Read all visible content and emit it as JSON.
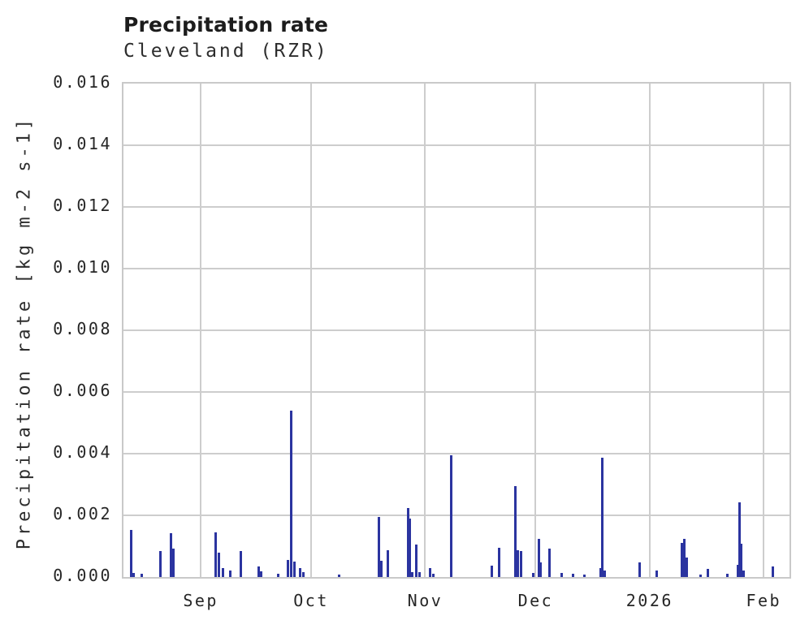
{
  "header": {
    "title": "Precipitation rate",
    "subtitle": "Cleveland (RZR)"
  },
  "chart_data": {
    "type": "bar",
    "title": "Precipitation rate",
    "subtitle": "Cleveland (RZR)",
    "xlabel": "",
    "ylabel": "Precipitation rate [kg m-2 s-1]",
    "ylim": [
      0,
      0.016
    ],
    "yticks": [
      "0.000",
      "0.002",
      "0.004",
      "0.006",
      "0.008",
      "0.010",
      "0.012",
      "0.014",
      "0.016"
    ],
    "grid": true,
    "legend": "none",
    "x_domain": [
      "2025-08-11",
      "2026-02-08"
    ],
    "x_ticks": [
      {
        "date": "2025-09-01",
        "label": "Sep"
      },
      {
        "date": "2025-10-01",
        "label": "Oct"
      },
      {
        "date": "2025-11-01",
        "label": "Nov"
      },
      {
        "date": "2025-12-01",
        "label": "Dec"
      },
      {
        "date": "2026-01-01",
        "label": "2026"
      },
      {
        "date": "2026-02-01",
        "label": "Feb"
      }
    ],
    "colors": {
      "bar": "#2b34a0",
      "grid": "#cdcdcd",
      "border": "#c9c9c9",
      "title_text": "#1c1c1c",
      "tick_text": "#262626",
      "background": "#ffffff"
    },
    "points": [
      {
        "date": "2025-08-13",
        "value": 0.00152
      },
      {
        "date": "2025-08-13T18:00",
        "value": 0.00013
      },
      {
        "date": "2025-08-16",
        "value": 0.0001
      },
      {
        "date": "2025-08-21",
        "value": 0.00084
      },
      {
        "date": "2025-08-24",
        "value": 0.00143
      },
      {
        "date": "2025-08-24T15:00",
        "value": 0.00091
      },
      {
        "date": "2025-09-05",
        "value": 0.00145
      },
      {
        "date": "2025-09-06",
        "value": 0.00078
      },
      {
        "date": "2025-09-07",
        "value": 0.0003
      },
      {
        "date": "2025-09-09",
        "value": 0.0002
      },
      {
        "date": "2025-09-12",
        "value": 0.00085
      },
      {
        "date": "2025-09-16T18:00",
        "value": 0.00035
      },
      {
        "date": "2025-09-17T12:00",
        "value": 0.00018
      },
      {
        "date": "2025-09-22",
        "value": 0.0001
      },
      {
        "date": "2025-09-24T16:00",
        "value": 0.00055
      },
      {
        "date": "2025-09-25T12:00",
        "value": 0.0054
      },
      {
        "date": "2025-09-26T12:00",
        "value": 0.0005
      },
      {
        "date": "2025-09-28",
        "value": 0.00028
      },
      {
        "date": "2025-09-29",
        "value": 0.00015
      },
      {
        "date": "2025-10-08T17:00",
        "value": 8e-05
      },
      {
        "date": "2025-10-19T12:00",
        "value": 0.00196
      },
      {
        "date": "2025-10-20",
        "value": 0.00053
      },
      {
        "date": "2025-10-21T22:00",
        "value": 0.00087
      },
      {
        "date": "2025-10-27T10:00",
        "value": 0.00223
      },
      {
        "date": "2025-10-27T20:00",
        "value": 0.0019
      },
      {
        "date": "2025-10-28T10:00",
        "value": 0.00017
      },
      {
        "date": "2025-10-29T15:00",
        "value": 0.00105
      },
      {
        "date": "2025-10-30T12:00",
        "value": 0.00015
      },
      {
        "date": "2025-11-02T06:00",
        "value": 0.0003
      },
      {
        "date": "2025-11-03T06:00",
        "value": 0.0001
      },
      {
        "date": "2025-11-08T04:00",
        "value": 0.00396
      },
      {
        "date": "2025-11-19T04:00",
        "value": 0.00038
      },
      {
        "date": "2025-11-21T04:00",
        "value": 0.00095
      },
      {
        "date": "2025-11-25T14:00",
        "value": 0.00294
      },
      {
        "date": "2025-11-26T03:00",
        "value": 0.00087
      },
      {
        "date": "2025-11-27",
        "value": 0.00085
      },
      {
        "date": "2025-11-30T10:00",
        "value": 0.00013
      },
      {
        "date": "2025-12-01T20:00",
        "value": 0.00123
      },
      {
        "date": "2025-12-02T09:00",
        "value": 0.00048
      },
      {
        "date": "2025-12-04T19:00",
        "value": 0.00093
      },
      {
        "date": "2025-12-08T03:00",
        "value": 0.00014
      },
      {
        "date": "2025-12-11T05:00",
        "value": 0.0001
      },
      {
        "date": "2025-12-14T09:00",
        "value": 8e-05
      },
      {
        "date": "2025-12-18T16:00",
        "value": 0.0003
      },
      {
        "date": "2025-12-19T03:00",
        "value": 0.00386
      },
      {
        "date": "2025-12-19T18:00",
        "value": 0.0002
      },
      {
        "date": "2025-12-29T06:00",
        "value": 0.00048
      },
      {
        "date": "2026-01-02T20:00",
        "value": 0.0002
      },
      {
        "date": "2026-01-09T19:00",
        "value": 0.0011
      },
      {
        "date": "2026-01-10T08:00",
        "value": 0.00125
      },
      {
        "date": "2026-01-11",
        "value": 0.00062
      },
      {
        "date": "2026-01-14T18:00",
        "value": 8e-05
      },
      {
        "date": "2026-01-16T22:00",
        "value": 0.00027
      },
      {
        "date": "2026-01-22T02:00",
        "value": 0.0001
      },
      {
        "date": "2026-01-24T23:00",
        "value": 0.0004
      },
      {
        "date": "2026-01-25T12:00",
        "value": 0.00241
      },
      {
        "date": "2026-01-25T23:00",
        "value": 0.00107
      },
      {
        "date": "2026-01-26T12:00",
        "value": 0.0002
      },
      {
        "date": "2026-02-03T10:00",
        "value": 0.00035
      }
    ]
  }
}
